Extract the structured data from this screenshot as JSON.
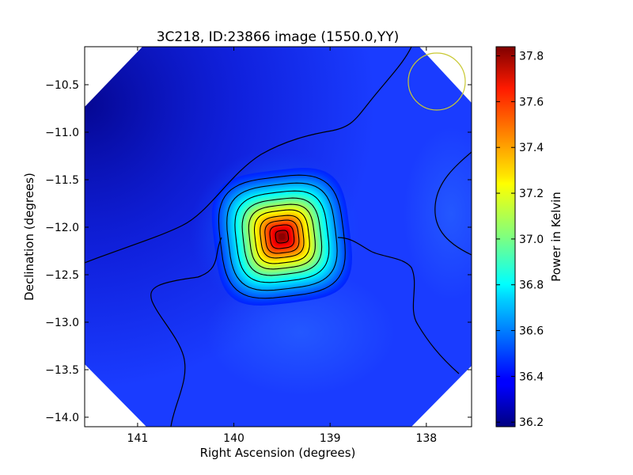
{
  "chart_data": {
    "type": "heatmap",
    "title": "3C218, ID:23866 image (1550.0,YY)",
    "xlabel": "Right Ascension (degrees)",
    "ylabel": "Declination (degrees)",
    "colorbar_label": "Power in Kelvin",
    "x_ticks": [
      {
        "value": 141,
        "label": "141"
      },
      {
        "value": 140,
        "label": "140"
      },
      {
        "value": 139,
        "label": "139"
      },
      {
        "value": 138,
        "label": "138"
      }
    ],
    "y_ticks": [
      {
        "value": -10.5,
        "label": "−10.5"
      },
      {
        "value": -11.0,
        "label": "−11.0"
      },
      {
        "value": -11.5,
        "label": "−11.5"
      },
      {
        "value": -12.0,
        "label": "−12.0"
      },
      {
        "value": -12.5,
        "label": "−12.5"
      },
      {
        "value": -13.0,
        "label": "−13.0"
      },
      {
        "value": -13.5,
        "label": "−13.5"
      },
      {
        "value": -14.0,
        "label": "−14.0"
      }
    ],
    "colorbar_ticks": [
      {
        "value": 36.2,
        "label": "36.2"
      },
      {
        "value": 36.4,
        "label": "36.4"
      },
      {
        "value": 36.6,
        "label": "36.6"
      },
      {
        "value": 36.8,
        "label": "36.8"
      },
      {
        "value": 37.0,
        "label": "37.0"
      },
      {
        "value": 37.2,
        "label": "37.2"
      },
      {
        "value": 37.4,
        "label": "37.4"
      },
      {
        "value": 37.6,
        "label": "37.6"
      },
      {
        "value": 37.8,
        "label": "37.8"
      }
    ],
    "x_range": [
      141.55,
      137.53
    ],
    "y_range": [
      -14.1,
      -10.1
    ],
    "colorbar_range": [
      36.18,
      37.84
    ],
    "colormap": "jet",
    "peak": {
      "ra": 139.5,
      "dec": -12.1,
      "value": 37.82
    },
    "background_level": 36.45,
    "beam_circle": {
      "ra": 137.82,
      "dec": -10.45,
      "color": "#c8c832"
    },
    "grid": false,
    "colorbar_position": "right"
  }
}
